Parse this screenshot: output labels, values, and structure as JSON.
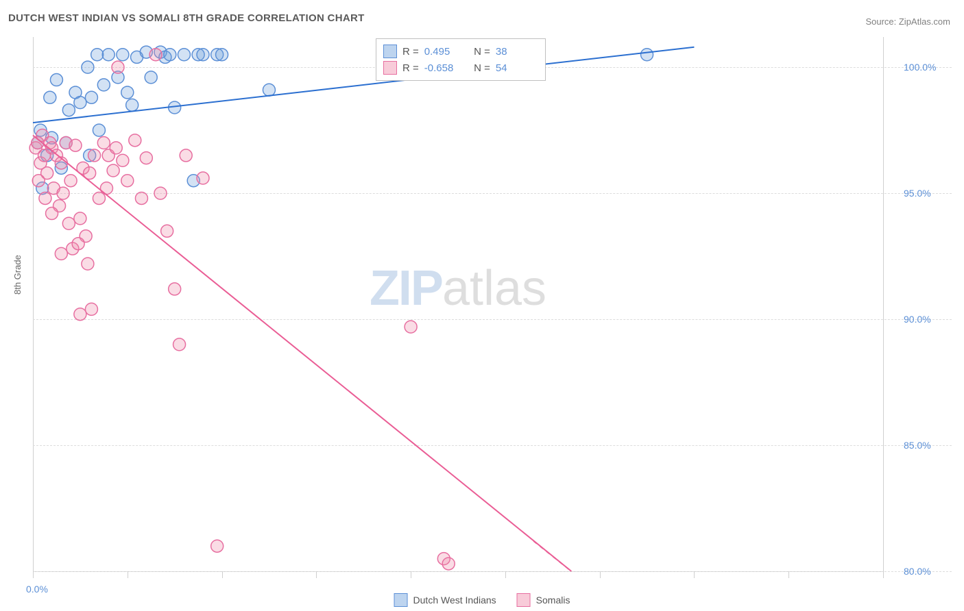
{
  "title": "DUTCH WEST INDIAN VS SOMALI 8TH GRADE CORRELATION CHART",
  "source_prefix": "Source: ",
  "source_name": "ZipAtlas.com",
  "y_axis_label": "8th Grade",
  "watermark_zip": "ZIP",
  "watermark_atlas": "atlas",
  "chart": {
    "type": "scatter",
    "xlim": [
      0,
      90
    ],
    "ylim": [
      80,
      101.2
    ],
    "y_ticks": [
      80.0,
      85.0,
      90.0,
      95.0,
      100.0
    ],
    "y_tick_labels": [
      "80.0%",
      "85.0%",
      "90.0%",
      "95.0%",
      "100.0%"
    ],
    "x_ticks": [
      0,
      10,
      20,
      30,
      40,
      50,
      60,
      70,
      80,
      90
    ],
    "x_origin_label": "0.0%",
    "grid_color": "#dcdcdc",
    "axis_color": "#cfcfcf",
    "tick_label_color": "#5b8fd6",
    "background_color": "#ffffff",
    "marker_radius": 9,
    "marker_stroke_width": 1.5,
    "trend_line_width": 2,
    "series": [
      {
        "name": "Dutch West Indians",
        "fill": "rgba(108,160,220,0.30)",
        "stroke": "#5b8fd6",
        "legend_fill": "rgba(108,160,220,0.45)",
        "legend_stroke": "#5b8fd6",
        "r_label": "R = ",
        "r_value": "0.495",
        "n_label": "N = ",
        "n_value": "38",
        "trend": {
          "x1": 0,
          "y1": 97.8,
          "x2": 70,
          "y2": 100.8,
          "color": "#2b6fd0"
        },
        "points": [
          [
            0.5,
            97.0
          ],
          [
            0.8,
            97.5
          ],
          [
            1.0,
            95.2
          ],
          [
            1.5,
            96.5
          ],
          [
            1.8,
            98.8
          ],
          [
            2.0,
            97.2
          ],
          [
            2.5,
            99.5
          ],
          [
            3.0,
            96.0
          ],
          [
            3.5,
            97.0
          ],
          [
            3.8,
            98.3
          ],
          [
            4.5,
            99.0
          ],
          [
            5.0,
            98.6
          ],
          [
            5.8,
            100.0
          ],
          [
            6.0,
            96.5
          ],
          [
            6.2,
            98.8
          ],
          [
            6.8,
            100.5
          ],
          [
            7.0,
            97.5
          ],
          [
            7.5,
            99.3
          ],
          [
            8.0,
            100.5
          ],
          [
            9.0,
            99.6
          ],
          [
            9.5,
            100.5
          ],
          [
            10.0,
            99.0
          ],
          [
            10.5,
            98.5
          ],
          [
            11.0,
            100.4
          ],
          [
            12.5,
            99.6
          ],
          [
            13.5,
            100.6
          ],
          [
            14.0,
            100.4
          ],
          [
            14.5,
            100.5
          ],
          [
            15.0,
            98.4
          ],
          [
            16.0,
            100.5
          ],
          [
            17.0,
            95.5
          ],
          [
            17.5,
            100.5
          ],
          [
            18.0,
            100.5
          ],
          [
            19.5,
            100.5
          ],
          [
            20.0,
            100.5
          ],
          [
            25.0,
            99.1
          ],
          [
            65.0,
            100.5
          ],
          [
            12.0,
            100.6
          ]
        ]
      },
      {
        "name": "Somalis",
        "fill": "rgba(240,140,170,0.30)",
        "stroke": "#e76ea0",
        "legend_fill": "rgba(240,140,170,0.45)",
        "legend_stroke": "#e76ea0",
        "r_label": "R = ",
        "r_value": "-0.658",
        "n_label": "N = ",
        "n_value": "54",
        "trend": {
          "x1": 0,
          "y1": 97.3,
          "x2": 57,
          "y2": 80.0,
          "color": "#ea5d95"
        },
        "trend_dash": {
          "x1": 53,
          "y1": 81.2,
          "x2": 57,
          "y2": 80.0,
          "color": "#ea5d95"
        },
        "points": [
          [
            0.3,
            96.8
          ],
          [
            0.5,
            97.0
          ],
          [
            0.8,
            96.2
          ],
          [
            1.0,
            97.3
          ],
          [
            1.2,
            96.5
          ],
          [
            1.5,
            95.8
          ],
          [
            1.8,
            97.0
          ],
          [
            2.0,
            96.8
          ],
          [
            2.2,
            95.2
          ],
          [
            2.5,
            96.5
          ],
          [
            2.8,
            94.5
          ],
          [
            3.0,
            96.2
          ],
          [
            3.2,
            95.0
          ],
          [
            3.5,
            97.0
          ],
          [
            3.8,
            93.8
          ],
          [
            4.0,
            95.5
          ],
          [
            4.5,
            96.9
          ],
          [
            5.0,
            94.0
          ],
          [
            5.3,
            96.0
          ],
          [
            5.6,
            93.3
          ],
          [
            5.8,
            92.2
          ],
          [
            6.0,
            95.8
          ],
          [
            6.5,
            96.5
          ],
          [
            7.0,
            94.8
          ],
          [
            7.5,
            97.0
          ],
          [
            8.0,
            96.5
          ],
          [
            8.8,
            96.8
          ],
          [
            9.0,
            100.0
          ],
          [
            9.5,
            96.3
          ],
          [
            10.0,
            95.5
          ],
          [
            10.8,
            97.1
          ],
          [
            11.5,
            94.8
          ],
          [
            12.0,
            96.4
          ],
          [
            13.0,
            100.5
          ],
          [
            13.5,
            95.0
          ],
          [
            15.0,
            91.2
          ],
          [
            15.5,
            89.0
          ],
          [
            18.0,
            95.6
          ],
          [
            19.5,
            81.0
          ],
          [
            3.0,
            92.6
          ],
          [
            5.0,
            90.2
          ],
          [
            4.2,
            92.8
          ],
          [
            6.2,
            90.4
          ],
          [
            2.0,
            94.2
          ],
          [
            1.3,
            94.8
          ],
          [
            0.6,
            95.5
          ],
          [
            4.8,
            93.0
          ],
          [
            7.8,
            95.2
          ],
          [
            8.5,
            95.9
          ],
          [
            14.2,
            93.5
          ],
          [
            16.2,
            96.5
          ],
          [
            40.0,
            89.7
          ],
          [
            43.5,
            80.5
          ],
          [
            44.0,
            80.3
          ]
        ]
      }
    ]
  },
  "legend_bottom": {
    "items": [
      {
        "label": "Dutch West Indians",
        "fill": "rgba(108,160,220,0.45)",
        "stroke": "#5b8fd6"
      },
      {
        "label": "Somalis",
        "fill": "rgba(240,140,170,0.45)",
        "stroke": "#e76ea0"
      }
    ]
  }
}
